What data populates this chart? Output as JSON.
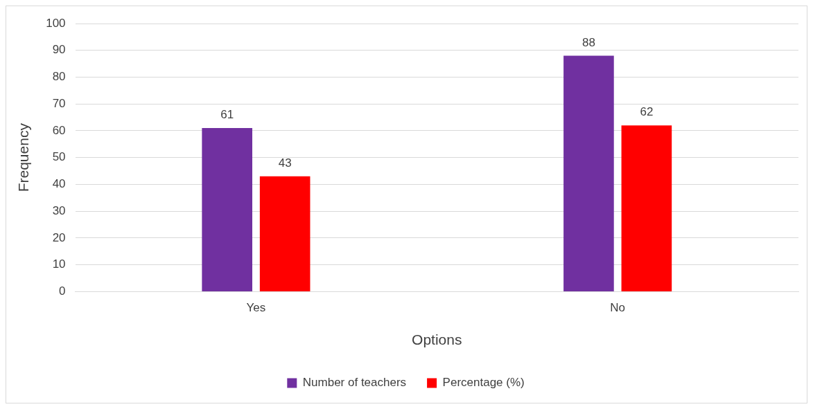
{
  "chart_data": {
    "type": "bar",
    "xlabel": "Options",
    "ylabel": "Frequency",
    "categories": [
      "Yes",
      "No"
    ],
    "series": [
      {
        "name": "Number of teachers",
        "color": "#7030a0",
        "values": [
          61,
          88
        ]
      },
      {
        "name": "Percentage (%)",
        "color": "#ff0000",
        "values": [
          43,
          62
        ]
      }
    ],
    "ylim": [
      0,
      100
    ],
    "yticks": [
      0,
      10,
      20,
      30,
      40,
      50,
      60,
      70,
      80,
      90,
      100
    ],
    "grid": "y",
    "legend": "bottom",
    "data_labels": true
  }
}
